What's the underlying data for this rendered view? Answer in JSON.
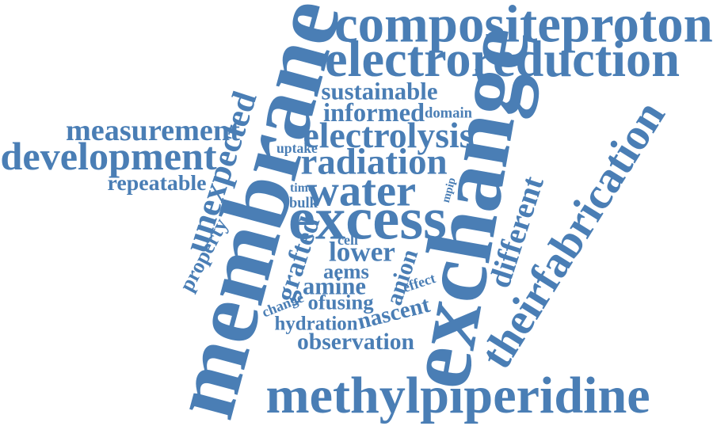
{
  "cloud": {
    "color": "#4a7eb5",
    "words": [
      "compositeproton",
      "electroreduction",
      "membrane",
      "exchange",
      "methylpiperidine",
      "theirfabrication",
      "excess",
      "water",
      "development",
      "measurement",
      "repeatable",
      "unexpected",
      "property",
      "sustainable",
      "informed",
      "domain",
      "electrolysis",
      "uptake",
      "radiation",
      "time",
      "bulk",
      "mpip",
      "different",
      "lower",
      "cell",
      "grafted",
      "aems",
      "amine",
      "anion",
      "effect",
      "change",
      "ofusing",
      "nascent",
      "hydration",
      "observation"
    ]
  }
}
